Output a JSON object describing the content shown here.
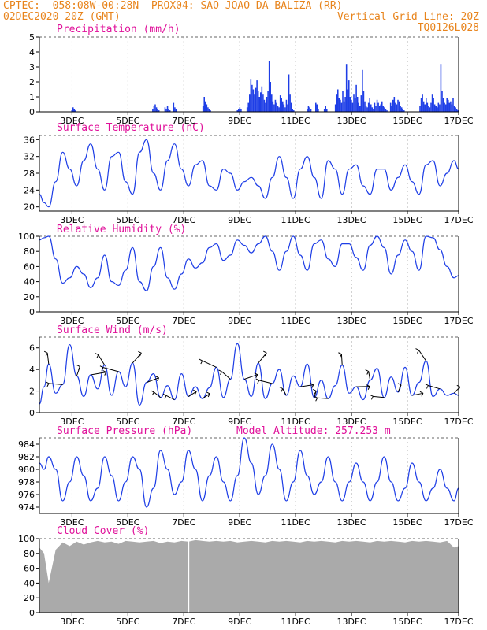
{
  "header": {
    "line1": "CPTEC:  058:08W-00:28N  PROX04: SAO JOAO DA BALIZA (RR)",
    "date": "02DEC2020 20Z (GMT)",
    "grid_note": "Vertical Grid Line: 20Z",
    "model": "TQ0126L028"
  },
  "colors": {
    "line": "#1e3ee6",
    "bar": "#1e3ee6",
    "cloud": "#aaaaaa",
    "title": "#e0109a",
    "header": "#e8841c"
  },
  "chart_data": [
    {
      "id": "precip",
      "type": "bar",
      "title": "Precipitation (mm/h)",
      "ylim": [
        0,
        5
      ],
      "yticks": [
        0,
        1,
        2,
        3,
        4,
        5
      ],
      "xlim": [
        0,
        360
      ],
      "xticks": [
        "3DEC",
        "5DEC",
        "7DEC",
        "9DEC",
        "11DEC",
        "13DEC",
        "15DEC",
        "17DEC"
      ],
      "x_hours_start": 0,
      "values": [
        0,
        0,
        0,
        0,
        0,
        0,
        0,
        0,
        0,
        0,
        0,
        0,
        0,
        0,
        0,
        0,
        0,
        0,
        0,
        0,
        0,
        0,
        0,
        0,
        0,
        0,
        0.1,
        0.3,
        0.2,
        0.1,
        0,
        0,
        0,
        0,
        0,
        0,
        0,
        0,
        0,
        0,
        0,
        0,
        0,
        0,
        0,
        0,
        0,
        0,
        0,
        0,
        0,
        0,
        0,
        0,
        0,
        0,
        0,
        0,
        0,
        0,
        0,
        0,
        0,
        0,
        0,
        0,
        0,
        0,
        0,
        0,
        0,
        0,
        0,
        0,
        0,
        0,
        0,
        0,
        0,
        0,
        0,
        0,
        0,
        0,
        0,
        0,
        0,
        0,
        0,
        0,
        0,
        0,
        0.2,
        0.4,
        0.5,
        0.3,
        0.2,
        0.1,
        0,
        0,
        0,
        0,
        0.3,
        0.2,
        0.4,
        0.2,
        0.1,
        0,
        0,
        0.6,
        0.3,
        0.2,
        0,
        0,
        0,
        0,
        0,
        0,
        0,
        0,
        0,
        0,
        0,
        0,
        0,
        0,
        0,
        0,
        0,
        0,
        0,
        0,
        0,
        0.4,
        1.0,
        0.7,
        0.5,
        0.3,
        0.2,
        0.1,
        0,
        0,
        0,
        0,
        0,
        0,
        0,
        0,
        0,
        0,
        0,
        0,
        0,
        0,
        0,
        0,
        0,
        0,
        0,
        0,
        0,
        0.1,
        0.2,
        0.3,
        0.2,
        0,
        0,
        0,
        0,
        0.3,
        0.6,
        1.2,
        2.2,
        1.8,
        1.5,
        1.2,
        1.6,
        2.1,
        1.4,
        1.0,
        1.3,
        1.7,
        1.2,
        0.8,
        0.6,
        1.0,
        1.4,
        3.4,
        2.0,
        1.2,
        0.7,
        0.5,
        0.8,
        0.6,
        0.4,
        0.3,
        1.1,
        0.9,
        0.7,
        0.5,
        0.3,
        0.8,
        0.5,
        2.5,
        1.2,
        0.6,
        0.2,
        0.1,
        0,
        0,
        0,
        0,
        0,
        0,
        0,
        0,
        0,
        0,
        0.2,
        0.4,
        0.3,
        0.2,
        0,
        0,
        0,
        0.6,
        0.5,
        0.2,
        0,
        0,
        0,
        0,
        0.2,
        0.4,
        0.2,
        0,
        0,
        0,
        0,
        0,
        0,
        0.5,
        1.2,
        1.5,
        0.9,
        0.8,
        0.6,
        1.4,
        0.7,
        1.0,
        3.2,
        1.5,
        2.1,
        1.0,
        0.8,
        0.6,
        1.2,
        0.9,
        1.8,
        1.0,
        0.6,
        0.4,
        1.1,
        2.8,
        1.4,
        0.7,
        0.4,
        0.3,
        0.6,
        0.9,
        0.5,
        0.3,
        0.2,
        0.6,
        0.4,
        0.8,
        0.6,
        0.4,
        0.5,
        0.7,
        0.4,
        0.3,
        0.2,
        0.1,
        0,
        0,
        0.6,
        0.4,
        0.8,
        1.0,
        0.6,
        0.5,
        0.8,
        0.7,
        0.4,
        0.3,
        0.2,
        0.1,
        0,
        0,
        0,
        0,
        0,
        0,
        0,
        0,
        0,
        0,
        0,
        0,
        0.4,
        0.9,
        1.2,
        0.7,
        0.5,
        0.9,
        0.6,
        0.4,
        0.3,
        0.6,
        1.2,
        0.9,
        0.5,
        0.4,
        0.3,
        0.6,
        0.5,
        3.2,
        1.4,
        0.9,
        0.6,
        0.5,
        0.9,
        0.8,
        0.6,
        0.7,
        0.5,
        0.9,
        0.4,
        0.3,
        0.2,
        0.1
      ]
    },
    {
      "id": "temp",
      "type": "line",
      "title": "Surface Temperature (nC)",
      "ylim": [
        19,
        37
      ],
      "yticks": [
        20,
        24,
        28,
        32,
        36
      ],
      "xlim": [
        0,
        360
      ],
      "xticks": [
        "3DEC",
        "5DEC",
        "7DEC",
        "9DEC",
        "11DEC",
        "13DEC",
        "15DEC",
        "17DEC"
      ],
      "x": [
        0,
        4,
        8,
        14,
        20,
        26,
        32,
        38,
        44,
        50,
        56,
        62,
        68,
        74,
        80,
        86,
        92,
        98,
        104,
        110,
        116,
        122,
        128,
        134,
        140,
        146,
        152,
        158,
        164,
        170,
        176,
        182,
        188,
        194,
        200,
        206,
        212,
        218,
        224,
        230,
        236,
        242,
        248,
        254,
        260,
        266,
        272,
        278,
        284,
        290,
        296,
        302,
        308,
        314,
        320,
        326,
        332,
        338,
        344,
        350,
        356,
        360
      ],
      "y": [
        23,
        21,
        20,
        26,
        33,
        29,
        25,
        31,
        35,
        29,
        24,
        32,
        33,
        26,
        23,
        33,
        36,
        28,
        24,
        31,
        35,
        29,
        25,
        30,
        31,
        25,
        24,
        29,
        28,
        24,
        26,
        27,
        25,
        22,
        27,
        32,
        27,
        22,
        29,
        32,
        27,
        22,
        31,
        29,
        23,
        29,
        30,
        25,
        23,
        29,
        29,
        24,
        27,
        30,
        26,
        23,
        30,
        31,
        25,
        28,
        31,
        29
      ]
    },
    {
      "id": "rh",
      "type": "line",
      "title": "Relative Humidity (%)",
      "ylim": [
        0,
        100
      ],
      "yticks": [
        0,
        20,
        40,
        60,
        80,
        100
      ],
      "xlim": [
        0,
        360
      ],
      "xticks": [
        "3DEC",
        "5DEC",
        "7DEC",
        "9DEC",
        "11DEC",
        "13DEC",
        "15DEC",
        "17DEC"
      ],
      "x": [
        0,
        4,
        8,
        14,
        20,
        26,
        32,
        38,
        44,
        50,
        56,
        62,
        68,
        74,
        80,
        86,
        92,
        98,
        104,
        110,
        116,
        122,
        128,
        134,
        140,
        146,
        152,
        158,
        164,
        170,
        176,
        182,
        188,
        194,
        200,
        206,
        212,
        218,
        224,
        230,
        236,
        242,
        248,
        254,
        260,
        266,
        272,
        278,
        284,
        290,
        296,
        302,
        308,
        314,
        320,
        326,
        332,
        338,
        344,
        350,
        356,
        360
      ],
      "y": [
        95,
        98,
        100,
        70,
        38,
        45,
        60,
        50,
        32,
        45,
        75,
        40,
        35,
        55,
        85,
        40,
        28,
        60,
        85,
        45,
        30,
        50,
        70,
        58,
        65,
        85,
        90,
        68,
        75,
        95,
        88,
        78,
        90,
        100,
        80,
        55,
        80,
        100,
        75,
        55,
        90,
        95,
        70,
        60,
        90,
        90,
        72,
        55,
        88,
        100,
        85,
        50,
        75,
        95,
        80,
        55,
        100,
        98,
        82,
        60,
        45,
        48
      ]
    },
    {
      "id": "wind",
      "type": "line",
      "title": "Surface Wind (m/s)",
      "ylim": [
        0,
        7
      ],
      "yticks": [
        0,
        2,
        4,
        6
      ],
      "xlim": [
        0,
        360
      ],
      "xticks": [
        "3DEC",
        "5DEC",
        "7DEC",
        "9DEC",
        "11DEC",
        "13DEC",
        "15DEC",
        "17DEC"
      ],
      "x": [
        0,
        4,
        8,
        14,
        20,
        26,
        32,
        38,
        44,
        50,
        56,
        62,
        68,
        74,
        80,
        86,
        92,
        98,
        104,
        110,
        116,
        122,
        128,
        134,
        140,
        146,
        152,
        158,
        164,
        170,
        176,
        182,
        188,
        194,
        200,
        206,
        212,
        218,
        224,
        230,
        236,
        242,
        248,
        254,
        260,
        266,
        272,
        278,
        284,
        290,
        296,
        302,
        308,
        314,
        320,
        326,
        332,
        338,
        344,
        350,
        356,
        360
      ],
      "y": [
        0.8,
        2.4,
        4.5,
        1.8,
        2.6,
        6.3,
        3.4,
        1.5,
        3.5,
        2.2,
        4.4,
        1.6,
        3.8,
        2.4,
        4.6,
        0.7,
        2.8,
        3.6,
        1.4,
        2.5,
        1.2,
        3.6,
        1.5,
        2.4,
        1.3,
        2.3,
        4.2,
        1.4,
        3.1,
        6.4,
        3.1,
        1.5,
        4.6,
        1.3,
        2.7,
        4.0,
        1.6,
        3.4,
        2.4,
        4.5,
        1.4,
        3.0,
        1.3,
        2.5,
        4.4,
        1.8,
        2.4,
        1.2,
        3.0,
        4.1,
        1.4,
        3.3,
        1.9,
        4.2,
        1.6,
        2.8,
        4.8,
        1.5,
        2.2,
        1.6,
        1.8,
        1.6
      ]
    },
    {
      "id": "pressure",
      "type": "line",
      "title": "Surface Pressure (hPa)",
      "subtitle": "Model Altitude: 257.253 m",
      "ylim": [
        973,
        985
      ],
      "yticks": [
        974,
        976,
        978,
        980,
        982,
        984
      ],
      "xlim": [
        0,
        360
      ],
      "xticks": [
        "3DEC",
        "5DEC",
        "7DEC",
        "9DEC",
        "11DEC",
        "13DEC",
        "15DEC",
        "17DEC"
      ],
      "x": [
        0,
        4,
        8,
        14,
        20,
        26,
        32,
        38,
        44,
        50,
        56,
        62,
        68,
        74,
        80,
        86,
        92,
        98,
        104,
        110,
        116,
        122,
        128,
        134,
        140,
        146,
        152,
        158,
        164,
        170,
        176,
        182,
        188,
        194,
        200,
        206,
        212,
        218,
        224,
        230,
        236,
        242,
        248,
        254,
        260,
        266,
        272,
        278,
        284,
        290,
        296,
        302,
        308,
        314,
        320,
        326,
        332,
        338,
        344,
        350,
        356,
        360
      ],
      "y": [
        981,
        980,
        982,
        980,
        975,
        978,
        982,
        979,
        975,
        977,
        982,
        979,
        975,
        978,
        982,
        980,
        974,
        977,
        983,
        980,
        976,
        978,
        983,
        980,
        975,
        979,
        982,
        978,
        975,
        979,
        985,
        981,
        976,
        979,
        984,
        980,
        975,
        978,
        983,
        979,
        976,
        978,
        982,
        978,
        975,
        978,
        981,
        978,
        975,
        978,
        982,
        978,
        975,
        977,
        981,
        978,
        975,
        977,
        980,
        977,
        975,
        977
      ]
    },
    {
      "id": "cloud",
      "type": "area",
      "title": "Cloud Cover (%)",
      "ylim": [
        0,
        100
      ],
      "yticks": [
        0,
        20,
        40,
        60,
        80,
        100
      ],
      "xlim": [
        0,
        360
      ],
      "xticks": [
        "3DEC",
        "5DEC",
        "7DEC",
        "9DEC",
        "11DEC",
        "13DEC",
        "15DEC",
        "17DEC"
      ],
      "x": [
        0,
        4,
        8,
        14,
        20,
        26,
        32,
        38,
        44,
        50,
        56,
        62,
        68,
        74,
        80,
        86,
        92,
        98,
        104,
        110,
        116,
        122,
        128,
        134,
        140,
        146,
        152,
        158,
        164,
        170,
        176,
        182,
        188,
        194,
        200,
        206,
        212,
        218,
        224,
        230,
        236,
        242,
        248,
        254,
        260,
        266,
        272,
        278,
        284,
        290,
        296,
        302,
        308,
        314,
        320,
        326,
        332,
        338,
        344,
        350,
        356,
        360
      ],
      "y": [
        88,
        80,
        40,
        85,
        95,
        90,
        96,
        92,
        95,
        97,
        95,
        96,
        93,
        97,
        96,
        95,
        96,
        97,
        94,
        96,
        95,
        97,
        96,
        98,
        97,
        96,
        97,
        96,
        97,
        95,
        96,
        97,
        96,
        95,
        97,
        96,
        97,
        96,
        95,
        97,
        96,
        97,
        96,
        95,
        97,
        96,
        97,
        96,
        95,
        97,
        96,
        97,
        96,
        95,
        97,
        96,
        97,
        96,
        95,
        97,
        88,
        90
      ]
    }
  ]
}
